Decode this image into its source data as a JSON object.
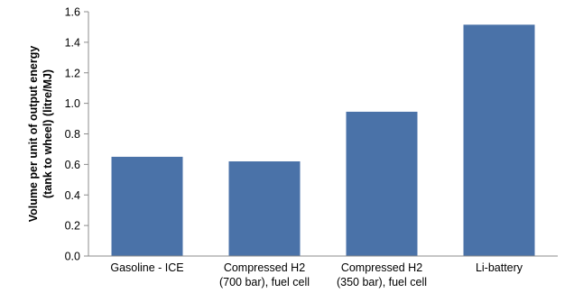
{
  "chart_data": {
    "type": "bar",
    "categories": [
      [
        "Gasoline - ICE"
      ],
      [
        "Compressed H2",
        "(700 bar), fuel cell"
      ],
      [
        "Compressed H2",
        "(350 bar), fuel cell"
      ],
      [
        "Li-battery"
      ]
    ],
    "values": [
      0.65,
      0.62,
      0.945,
      1.515
    ],
    "title": "",
    "xlabel": "",
    "ylabel": [
      "Volume per unit of output energy",
      "(tank to wheel) (litre/MJ)"
    ],
    "ylim": [
      0,
      1.6
    ],
    "yticks": [
      "0.0",
      "0.2",
      "0.4",
      "0.6",
      "0.8",
      "1.0",
      "1.2",
      "1.4",
      "1.6"
    ],
    "grid": false,
    "legend": "none",
    "colors": {
      "bar": "#4a72a8",
      "axis": "#8c8c8c"
    }
  }
}
